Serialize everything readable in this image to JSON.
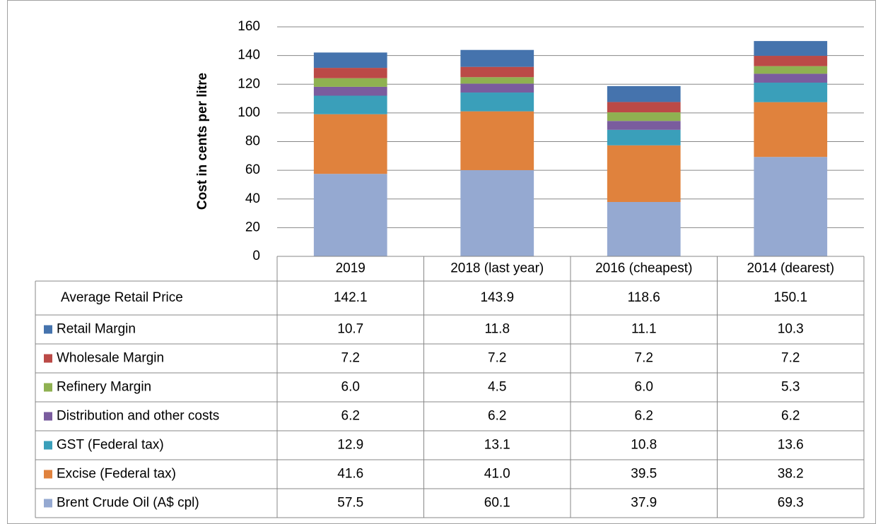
{
  "chart_data": {
    "type": "stacked_bar",
    "y_label": "Cost in cents per litre",
    "categories": [
      "2019",
      "2018 (last year)",
      "2016 (cheapest)",
      "2014 (dearest)"
    ],
    "ylim": [
      0,
      160
    ],
    "yticks": [
      0,
      20,
      40,
      60,
      80,
      100,
      120,
      140,
      160
    ],
    "grid": true,
    "series": [
      {
        "name": "Brent Crude Oil (A$ cpl)",
        "color": "#95a9d1",
        "values": [
          57.5,
          60.1,
          37.9,
          69.3
        ]
      },
      {
        "name": "Excise (Federal tax)",
        "color": "#e0823d",
        "values": [
          41.6,
          41.0,
          39.5,
          38.2
        ],
        "value_labels": [
          "41.6",
          "41.0",
          "39.5",
          "38.2"
        ]
      },
      {
        "name": "GST (Federal tax)",
        "color": "#3a9fba",
        "values": [
          12.9,
          13.1,
          10.8,
          13.6
        ]
      },
      {
        "name": "Distribution and other costs",
        "color": "#7a5c9e",
        "values": [
          6.2,
          6.2,
          6.2,
          6.2
        ]
      },
      {
        "name": "Refinery Margin",
        "color": "#8fb151",
        "values": [
          6.0,
          4.5,
          6.0,
          5.3
        ],
        "value_labels": [
          "6.0",
          "4.5",
          "6.0",
          "5.3"
        ]
      },
      {
        "name": "Wholesale Margin",
        "color": "#bb4a47",
        "values": [
          7.2,
          7.2,
          7.2,
          7.2
        ]
      },
      {
        "name": "Retail Margin",
        "color": "#4573ad",
        "values": [
          10.7,
          11.8,
          11.1,
          10.3
        ]
      }
    ],
    "totals": {
      "name": "Average Retail Price",
      "values": [
        142.1,
        143.9,
        118.6,
        150.1
      ]
    }
  }
}
